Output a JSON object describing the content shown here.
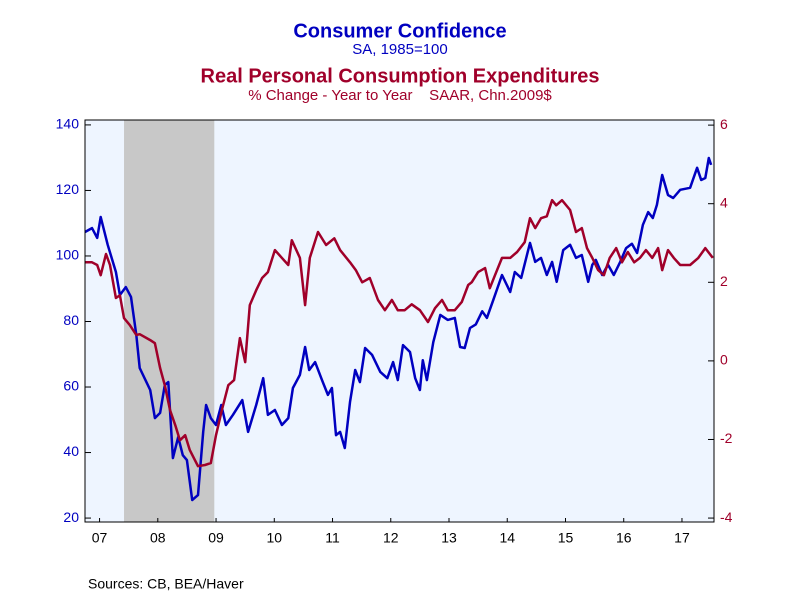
{
  "chart_data": {
    "type": "line",
    "title": "Consumer Confidence",
    "subtitle": "SA, 1985=100",
    "title2": "Real Personal Consumption Expenditures",
    "subtitle2": "% Change - Year to Year    SAAR, Chn.2009$",
    "source": "Sources:  CB, BEA/Haver",
    "xlim": [
      2007.25,
      2018.05
    ],
    "xticks": [
      {
        "value": 2007.5,
        "label": "07"
      },
      {
        "value": 2008.5,
        "label": "08"
      },
      {
        "value": 2009.5,
        "label": "09"
      },
      {
        "value": 2010.5,
        "label": "10"
      },
      {
        "value": 2011.5,
        "label": "11"
      },
      {
        "value": 2012.5,
        "label": "12"
      },
      {
        "value": 2013.5,
        "label": "13"
      },
      {
        "value": 2014.5,
        "label": "14"
      },
      {
        "value": 2015.5,
        "label": "15"
      },
      {
        "value": 2016.5,
        "label": "16"
      },
      {
        "value": 2017.5,
        "label": "17"
      }
    ],
    "ylim": [
      18.8,
      141.5
    ],
    "yticks": [
      20,
      40,
      60,
      80,
      100,
      120,
      140
    ],
    "y2lim": [
      -4.1,
      6.13
    ],
    "y2ticks": [
      -4,
      -2,
      0,
      2,
      4,
      6
    ],
    "recession": [
      2007.92,
      2009.47
    ],
    "series": [
      {
        "name": "Consumer Confidence",
        "color": "#0000c0",
        "x": [
          2007.25,
          2007.37,
          2007.46,
          2007.52,
          2007.64,
          2007.78,
          2007.85,
          2007.95,
          2008.04,
          2008.13,
          2008.19,
          2008.37,
          2008.45,
          2008.54,
          2008.62,
          2008.68,
          2008.76,
          2008.85,
          2008.93,
          2009.0,
          2009.09,
          2009.19,
          2009.28,
          2009.33,
          2009.41,
          2009.5,
          2009.59,
          2009.67,
          2009.79,
          2009.95,
          2010.05,
          2010.19,
          2010.31,
          2010.39,
          2010.51,
          2010.63,
          2010.74,
          2010.82,
          2010.94,
          2011.03,
          2011.1,
          2011.2,
          2011.32,
          2011.42,
          2011.49,
          2011.56,
          2011.63,
          2011.71,
          2011.8,
          2011.89,
          2011.97,
          2012.06,
          2012.18,
          2012.32,
          2012.44,
          2012.54,
          2012.62,
          2012.71,
          2012.83,
          2012.92,
          2013.0,
          2013.05,
          2013.12,
          2013.23,
          2013.35,
          2013.48,
          2013.6,
          2013.69,
          2013.77,
          2013.86,
          2013.96,
          2014.07,
          2014.15,
          2014.26,
          2014.41,
          2014.55,
          2014.63,
          2014.74,
          2014.89,
          2014.98,
          2015.08,
          2015.18,
          2015.27,
          2015.35,
          2015.46,
          2015.58,
          2015.68,
          2015.78,
          2015.89,
          2015.96,
          2016.02,
          2016.13,
          2016.23,
          2016.33,
          2016.44,
          2016.54,
          2016.64,
          2016.73,
          2016.83,
          2016.92,
          2017.0,
          2017.07,
          2017.16,
          2017.26,
          2017.35,
          2017.47,
          2017.64,
          2017.76,
          2017.83,
          2017.9,
          2017.96,
          2018.0
        ],
        "values": [
          107.3,
          108.5,
          105.5,
          111.9,
          103.4,
          95.1,
          88.1,
          90.5,
          87.5,
          75.9,
          65.8,
          59.1,
          50.5,
          52.1,
          60.6,
          61.5,
          38.3,
          44.7,
          39.2,
          37.7,
          25.5,
          27.0,
          46.3,
          54.5,
          50.5,
          48.4,
          54.5,
          48.4,
          51.5,
          56.0,
          46.3,
          54.5,
          62.7,
          51.5,
          53.0,
          48.4,
          50.5,
          59.7,
          63.7,
          72.2,
          65.2,
          67.6,
          62.1,
          57.6,
          59.7,
          45.3,
          46.3,
          41.4,
          55.4,
          65.2,
          61.5,
          71.9,
          69.8,
          64.6,
          62.7,
          67.6,
          62.1,
          72.8,
          70.7,
          62.7,
          59.1,
          68.2,
          62.1,
          73.7,
          82.0,
          80.5,
          81.1,
          72.2,
          71.9,
          78.0,
          79.1,
          83.1,
          81.1,
          86.6,
          94.2,
          89.0,
          95.1,
          93.3,
          104.0,
          98.2,
          99.4,
          94.2,
          98.2,
          92.1,
          101.8,
          103.4,
          99.4,
          100.3,
          92.1,
          97.3,
          98.8,
          94.2,
          97.3,
          94.2,
          98.2,
          102.4,
          103.7,
          100.9,
          109.5,
          113.4,
          111.6,
          115.6,
          124.7,
          118.6,
          117.7,
          120.2,
          120.8,
          126.9,
          123.2,
          123.8,
          129.9,
          127.8
        ]
      },
      {
        "name": "Real Personal Consumption Expenditures",
        "color": "#a0002a",
        "axis": "y2",
        "x": [
          2007.25,
          2007.37,
          2007.46,
          2007.52,
          2007.61,
          2007.68,
          2007.78,
          2007.85,
          2007.92,
          2008.02,
          2008.13,
          2008.19,
          2008.37,
          2008.45,
          2008.54,
          2008.62,
          2008.71,
          2008.8,
          2008.88,
          2008.97,
          2009.05,
          2009.19,
          2009.31,
          2009.41,
          2009.5,
          2009.6,
          2009.71,
          2009.81,
          2009.91,
          2010.0,
          2010.08,
          2010.19,
          2010.29,
          2010.39,
          2010.51,
          2010.63,
          2010.74,
          2010.8,
          2010.94,
          2011.03,
          2011.11,
          2011.25,
          2011.39,
          2011.53,
          2011.63,
          2011.8,
          2011.9,
          2012.01,
          2012.14,
          2012.28,
          2012.4,
          2012.52,
          2012.62,
          2012.74,
          2012.86,
          2013.0,
          2013.14,
          2013.26,
          2013.38,
          2013.48,
          2013.6,
          2013.72,
          2013.83,
          2013.89,
          2014.0,
          2014.12,
          2014.2,
          2014.29,
          2014.41,
          2014.55,
          2014.67,
          2014.8,
          2014.89,
          2014.98,
          2015.08,
          2015.18,
          2015.27,
          2015.34,
          2015.44,
          2015.58,
          2015.68,
          2015.78,
          2015.87,
          2015.96,
          2016.06,
          2016.16,
          2016.26,
          2016.37,
          2016.47,
          2016.57,
          2016.68,
          2016.78,
          2016.88,
          2016.99,
          2017.09,
          2017.16,
          2017.26,
          2017.36,
          2017.47,
          2017.64,
          2017.78,
          2017.9,
          2018.03
        ],
        "values": [
          2.51,
          2.51,
          2.44,
          2.18,
          2.72,
          2.44,
          1.6,
          1.67,
          1.09,
          0.91,
          0.66,
          0.68,
          0.53,
          0.45,
          -0.18,
          -0.62,
          -1.25,
          -1.64,
          -2.02,
          -1.89,
          -2.27,
          -2.68,
          -2.65,
          -2.6,
          -1.89,
          -1.25,
          -0.62,
          -0.49,
          0.58,
          -0.03,
          1.42,
          1.8,
          2.11,
          2.26,
          2.82,
          2.62,
          2.44,
          3.07,
          2.62,
          1.42,
          2.62,
          3.28,
          2.95,
          3.12,
          2.82,
          2.51,
          2.31,
          2.0,
          2.11,
          1.55,
          1.29,
          1.55,
          1.29,
          1.29,
          1.44,
          1.29,
          0.99,
          1.34,
          1.55,
          1.29,
          1.29,
          1.5,
          1.93,
          2.0,
          2.26,
          2.36,
          1.85,
          2.18,
          2.62,
          2.62,
          2.77,
          3.02,
          3.63,
          3.38,
          3.63,
          3.68,
          4.09,
          3.96,
          4.09,
          3.84,
          3.28,
          3.38,
          2.87,
          2.62,
          2.31,
          2.18,
          2.62,
          2.87,
          2.51,
          2.77,
          2.51,
          2.62,
          2.82,
          2.62,
          2.87,
          2.31,
          2.82,
          2.62,
          2.44,
          2.44,
          2.62,
          2.87,
          2.62
        ]
      }
    ]
  }
}
